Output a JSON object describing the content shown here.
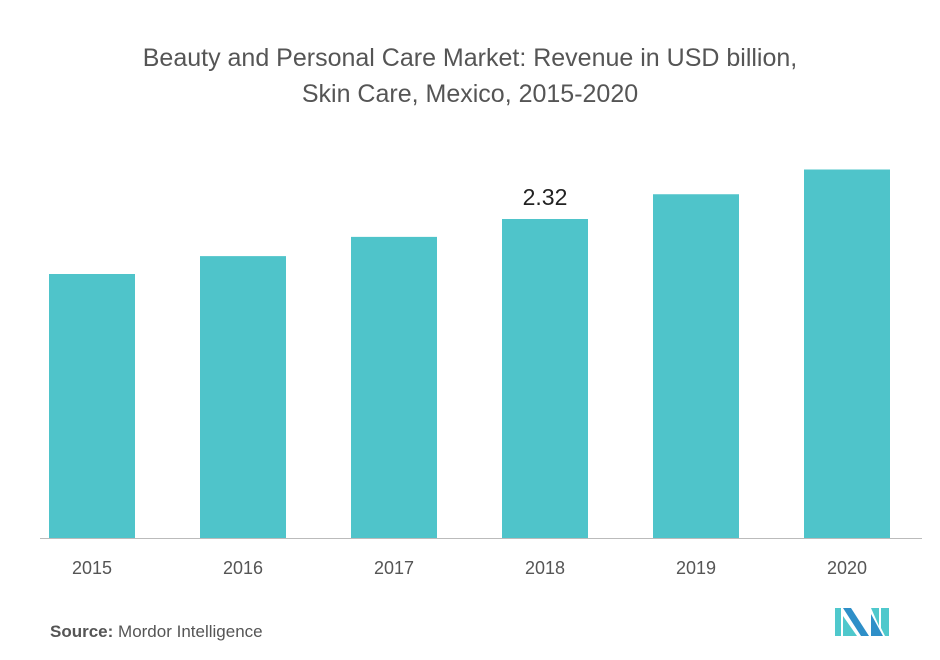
{
  "chart_data": {
    "type": "bar",
    "title": "Beauty and Personal Care Market: Revenue in USD billion, Skin Care, Mexico, 2015-2020",
    "title_lines": [
      "Beauty and Personal Care Market: Revenue in USD billion,",
      "Skin Care, Mexico, 2015-2020"
    ],
    "categories": [
      "2015",
      "2016",
      "2017",
      "2018",
      "2019",
      "2020"
    ],
    "values": [
      1.92,
      2.05,
      2.19,
      2.32,
      2.5,
      2.68
    ],
    "data_labels": {
      "2018": "2.32"
    },
    "xlabel": "",
    "ylabel": "",
    "ylim": [
      0,
      2.8
    ],
    "grid": false,
    "bar_color": "#4fc4ca"
  },
  "source": {
    "label": "Source:",
    "text": "Mordor Intelligence"
  },
  "logo": {
    "colors": [
      "#2e8fc8",
      "#4fc8cc"
    ]
  }
}
